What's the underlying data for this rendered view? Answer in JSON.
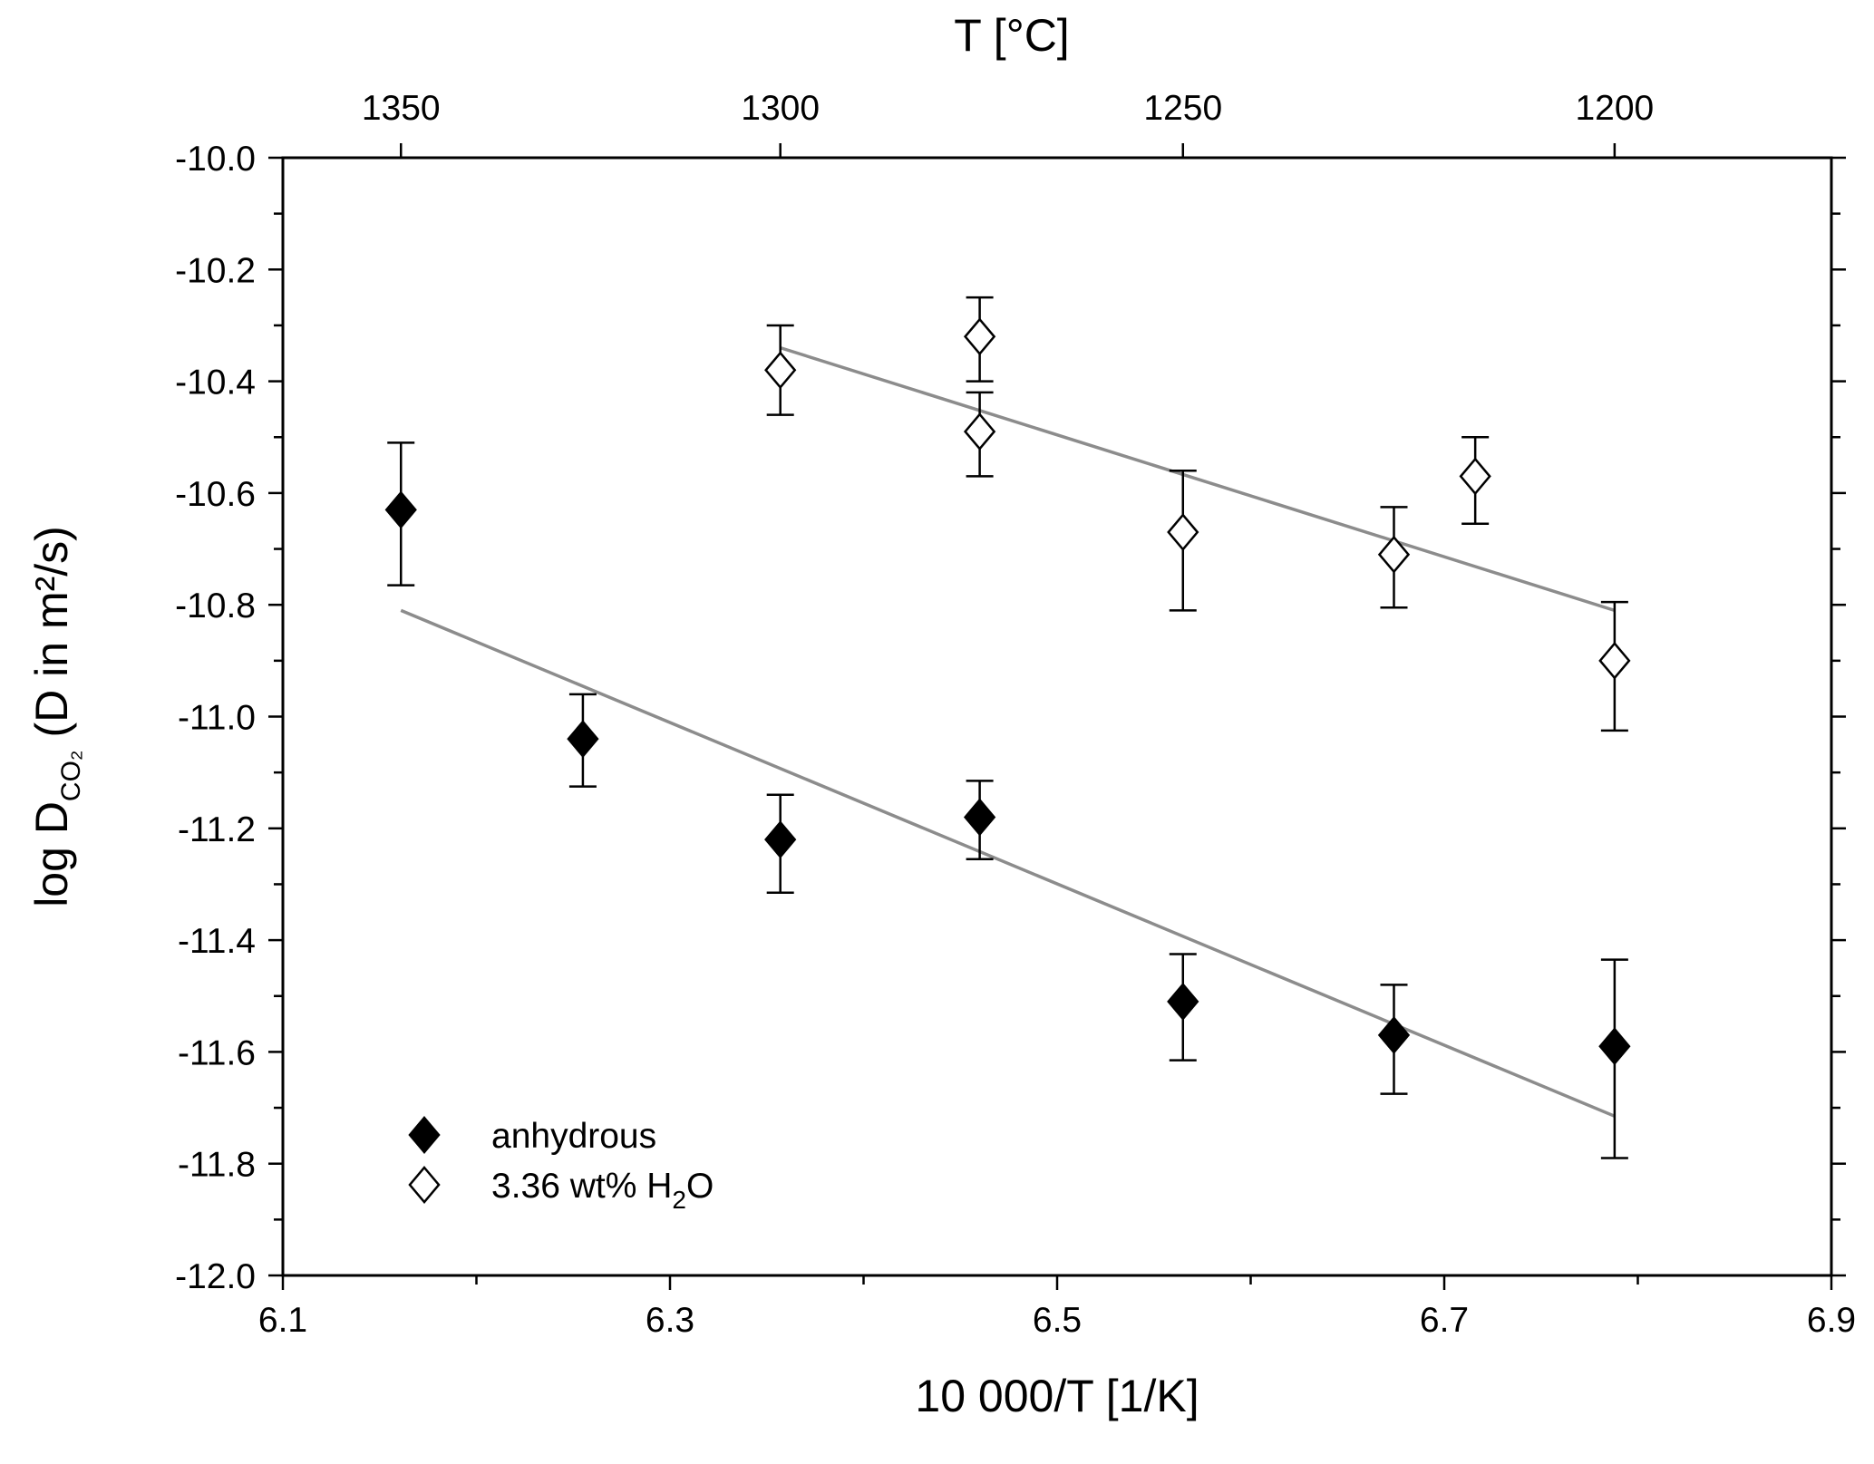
{
  "chart_data": {
    "type": "scatter",
    "title": "",
    "xlabel": "10 000/T [1/K]",
    "x2label": "T [°C]",
    "ylabel": "log D",
    "ylabel_subscript": "CO₂",
    "ylabel_suffix": " (D in m²/s)",
    "xlim": [
      6.1,
      6.9
    ],
    "ylim": [
      -12.0,
      -10.0
    ],
    "x_ticks": [
      6.1,
      6.3,
      6.5,
      6.7,
      6.9
    ],
    "x_tick_labels": [
      "6.1",
      "6.3",
      "6.5",
      "6.7",
      "6.9"
    ],
    "x_minor_ticks": [
      6.2,
      6.4,
      6.6,
      6.8
    ],
    "y_ticks": [
      -10.0,
      -10.2,
      -10.4,
      -10.6,
      -10.8,
      -11.0,
      -11.2,
      -11.4,
      -11.6,
      -11.8,
      -12.0
    ],
    "y_tick_labels": [
      "-10.0",
      "-10.2",
      "-10.4",
      "-10.6",
      "-10.8",
      "-11.0",
      "-11.2",
      "-11.4",
      "-11.6",
      "-11.8",
      "-12.0"
    ],
    "y_minor_ticks": [
      -10.1,
      -10.3,
      -10.5,
      -10.7,
      -10.9,
      -11.1,
      -11.3,
      -11.5,
      -11.7,
      -11.9
    ],
    "top_axis": {
      "ticks": [
        {
          "celsius": "1350",
          "x": 6.161
        },
        {
          "celsius": "1300",
          "x": 6.357
        },
        {
          "celsius": "1250",
          "x": 6.565
        },
        {
          "celsius": "1200",
          "x": 6.788
        }
      ]
    },
    "series": [
      {
        "name": "anhydrous",
        "marker": "diamond-filled",
        "color": "#000000",
        "points": [
          {
            "x": 6.161,
            "y": -10.63,
            "err_low": -10.765,
            "err_high": -10.51
          },
          {
            "x": 6.255,
            "y": -11.04,
            "err_low": -11.125,
            "err_high": -10.96
          },
          {
            "x": 6.357,
            "y": -11.22,
            "err_low": -11.315,
            "err_high": -11.14
          },
          {
            "x": 6.46,
            "y": -11.18,
            "err_low": -11.255,
            "err_high": -11.115
          },
          {
            "x": 6.565,
            "y": -11.51,
            "err_low": -11.615,
            "err_high": -11.425
          },
          {
            "x": 6.674,
            "y": -11.57,
            "err_low": -11.675,
            "err_high": -11.48
          },
          {
            "x": 6.788,
            "y": -11.59,
            "err_low": -11.79,
            "err_high": -11.435
          }
        ],
        "fit": {
          "x1": 6.161,
          "y1": -10.81,
          "x2": 6.788,
          "y2": -11.715
        }
      },
      {
        "name": "3.36 wt% H₂O",
        "marker": "diamond-open",
        "color": "#000000",
        "points": [
          {
            "x": 6.357,
            "y": -10.38,
            "err_low": -10.46,
            "err_high": -10.3
          },
          {
            "x": 6.46,
            "y": -10.32,
            "err_low": -10.4,
            "err_high": -10.25
          },
          {
            "x": 6.46,
            "y": -10.49,
            "err_low": -10.57,
            "err_high": -10.42
          },
          {
            "x": 6.565,
            "y": -10.67,
            "err_low": -10.81,
            "err_high": -10.56
          },
          {
            "x": 6.674,
            "y": -10.71,
            "err_low": -10.805,
            "err_high": -10.625
          },
          {
            "x": 6.716,
            "y": -10.57,
            "err_low": -10.655,
            "err_high": -10.5
          },
          {
            "x": 6.788,
            "y": -10.9,
            "err_low": -11.025,
            "err_high": -10.795
          }
        ],
        "fit": {
          "x1": 6.357,
          "y1": -10.34,
          "x2": 6.788,
          "y2": -10.81
        }
      }
    ],
    "fit_color": "#8c8c8c",
    "legend": {
      "position": "bottom-left",
      "entries": [
        {
          "label_main": "anhydrous",
          "label_sub": "",
          "label_tail": "",
          "marker": "diamond-filled"
        },
        {
          "label_main": "3.36 wt% H",
          "label_sub": "2",
          "label_tail": "O",
          "marker": "diamond-open"
        }
      ]
    }
  }
}
